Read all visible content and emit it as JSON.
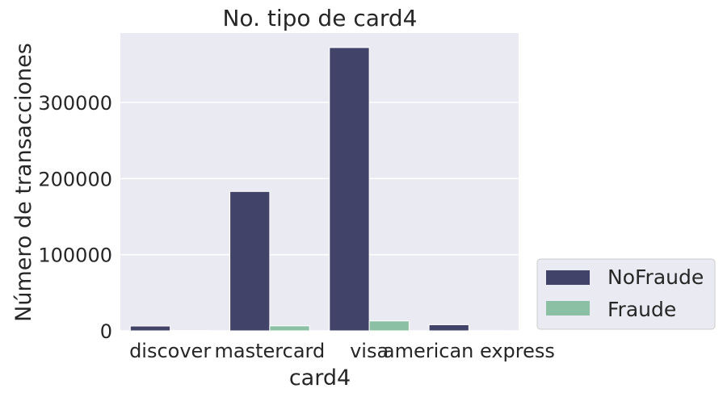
{
  "chart_data": {
    "type": "bar",
    "title": "No. tipo de card4",
    "xlabel": "card4",
    "ylabel": "Número de transacciones",
    "categories": [
      "discover",
      "mastercard",
      "visa",
      "american express"
    ],
    "series": [
      {
        "name": "NoFraude",
        "values": [
          6300,
          183000,
          372000,
          8000
        ]
      },
      {
        "name": "Fraude",
        "values": [
          500,
          6500,
          13000,
          250
        ]
      }
    ],
    "ylim": [
      0,
      391000
    ],
    "yticks": [
      0,
      100000,
      200000,
      300000
    ],
    "ytick_labels": [
      "0",
      "100000",
      "200000",
      "300000"
    ],
    "grid": true,
    "legend_position": "lower-right outside",
    "colors": {
      "NoFraude": "#414369",
      "Fraude": "#8cc0a4",
      "plot_background": "#eaeaf2",
      "grid": "#ffffff"
    }
  }
}
